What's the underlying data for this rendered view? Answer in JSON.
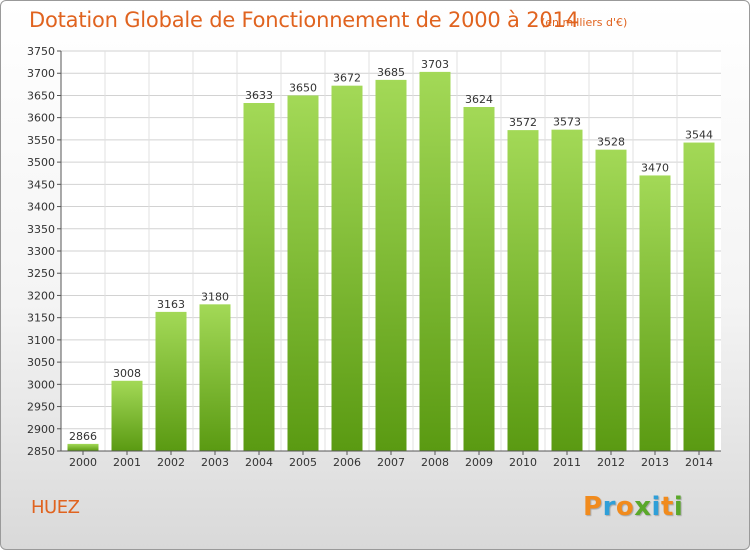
{
  "chart_data": {
    "type": "bar",
    "title": "Dotation Globale de Fonctionnement de 2000 à 2014",
    "unit_label": "(en milliers d'€)",
    "categories": [
      "2000",
      "2001",
      "2002",
      "2003",
      "2004",
      "2005",
      "2006",
      "2007",
      "2008",
      "2009",
      "2010",
      "2011",
      "2012",
      "2013",
      "2014"
    ],
    "values": [
      2866,
      3008,
      3163,
      3180,
      3633,
      3650,
      3672,
      3685,
      3703,
      3624,
      3572,
      3573,
      3528,
      3470,
      3544
    ],
    "ylim": [
      2850,
      3750
    ],
    "yticks": [
      2850,
      2900,
      2950,
      3000,
      3050,
      3100,
      3150,
      3200,
      3250,
      3300,
      3350,
      3400,
      3450,
      3500,
      3550,
      3600,
      3650,
      3700,
      3750
    ],
    "grid": true,
    "bar_color": "#7cc22e"
  },
  "footer": {
    "commune": "HUEZ"
  },
  "logo": {
    "text": "Proxiti",
    "letters": [
      {
        "ch": "P",
        "color": "#f18b1d"
      },
      {
        "ch": "r",
        "color": "#2f9fd8"
      },
      {
        "ch": "o",
        "color": "#f18b1d"
      },
      {
        "ch": "x",
        "color": "#5aa82a"
      },
      {
        "ch": "i",
        "color": "#2f9fd8"
      },
      {
        "ch": "t",
        "color": "#f18b1d"
      },
      {
        "ch": "i",
        "color": "#5aa82a"
      }
    ]
  }
}
